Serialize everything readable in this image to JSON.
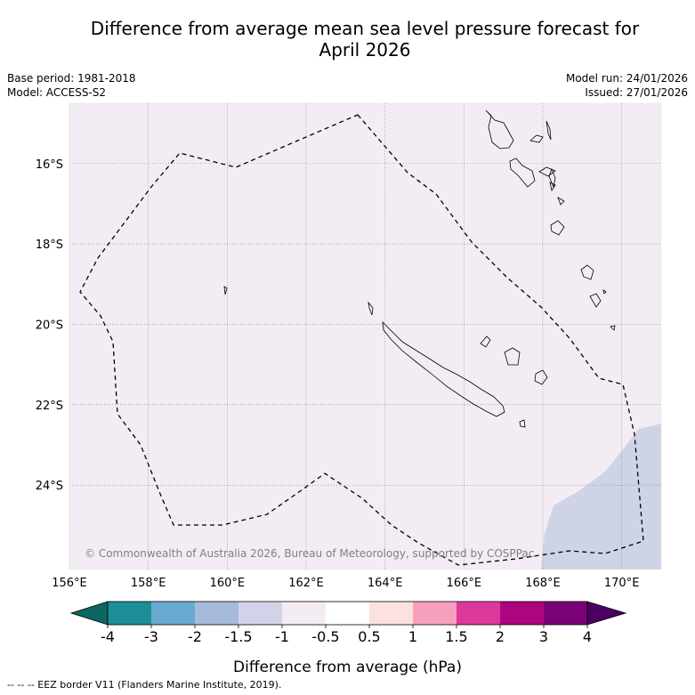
{
  "title_line1": "Difference from average mean sea level pressure forecast for",
  "title_line2": "April 2026",
  "meta": {
    "base_period": "Base period: 1981-2018",
    "model": "Model: ACCESS-S2",
    "model_run": "Model run: 24/01/2026",
    "issued": "Issued: 27/01/2026"
  },
  "map": {
    "lon_range": [
      156,
      171
    ],
    "lat_range": [
      -26.1,
      -14.5
    ],
    "lon_ticks": [
      "156°E",
      "158°E",
      "160°E",
      "162°E",
      "164°E",
      "166°E",
      "168°E",
      "170°E"
    ],
    "lat_ticks": [
      "16°S",
      "18°S",
      "20°S",
      "22°S",
      "24°S"
    ],
    "copyright": "© Commonwealth of Australia 2026, Bureau of Meteorology, supported by COSPPac",
    "background_color": "#f4ecf5",
    "anomaly_color": "#cfd3e6"
  },
  "colorbar": {
    "tick_labels": [
      "-4",
      "-3",
      "-2",
      "-1.5",
      "-1",
      "-0.5",
      "0.5",
      "1",
      "1.5",
      "2",
      "3",
      "4"
    ],
    "colors": [
      "#1b8f95",
      "#6aa9d1",
      "#a7bada",
      "#d2d3e8",
      "#f4ecf5",
      "#ffffff",
      "#fde0e0",
      "#f7a0be",
      "#db3a9c",
      "#ac0580",
      "#7a0177"
    ],
    "low_extend_color": "#0d6660",
    "high_extend_color": "#4a0060",
    "label": "Difference from average (hPa)"
  },
  "footnote": "--  --  -- EEZ border V11 (Flanders Marine Institute, 2019)."
}
